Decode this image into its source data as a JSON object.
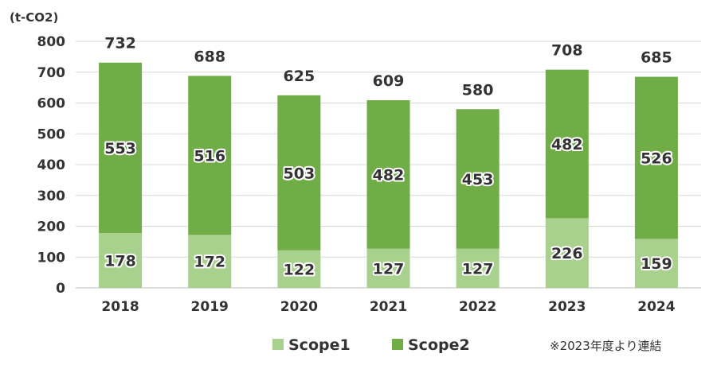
{
  "chart_data": {
    "type": "bar",
    "stacked": true,
    "unit_label": "(t-CO2)",
    "categories": [
      "2018",
      "2019",
      "2020",
      "2021",
      "2022",
      "2023",
      "2024"
    ],
    "series": [
      {
        "name": "Scope1",
        "color": "#a9d18e",
        "values": [
          178,
          172,
          122,
          127,
          127,
          226,
          159
        ]
      },
      {
        "name": "Scope2",
        "color": "#70ad47",
        "values": [
          553,
          516,
          503,
          482,
          453,
          482,
          526
        ]
      }
    ],
    "totals": [
      732,
      688,
      625,
      609,
      580,
      708,
      685
    ],
    "ylim": [
      0,
      800
    ],
    "yticks": [
      0,
      100,
      200,
      300,
      400,
      500,
      600,
      700,
      800
    ],
    "grid": true,
    "legend_position": "bottom"
  },
  "footnote": "※2023年度より連結"
}
